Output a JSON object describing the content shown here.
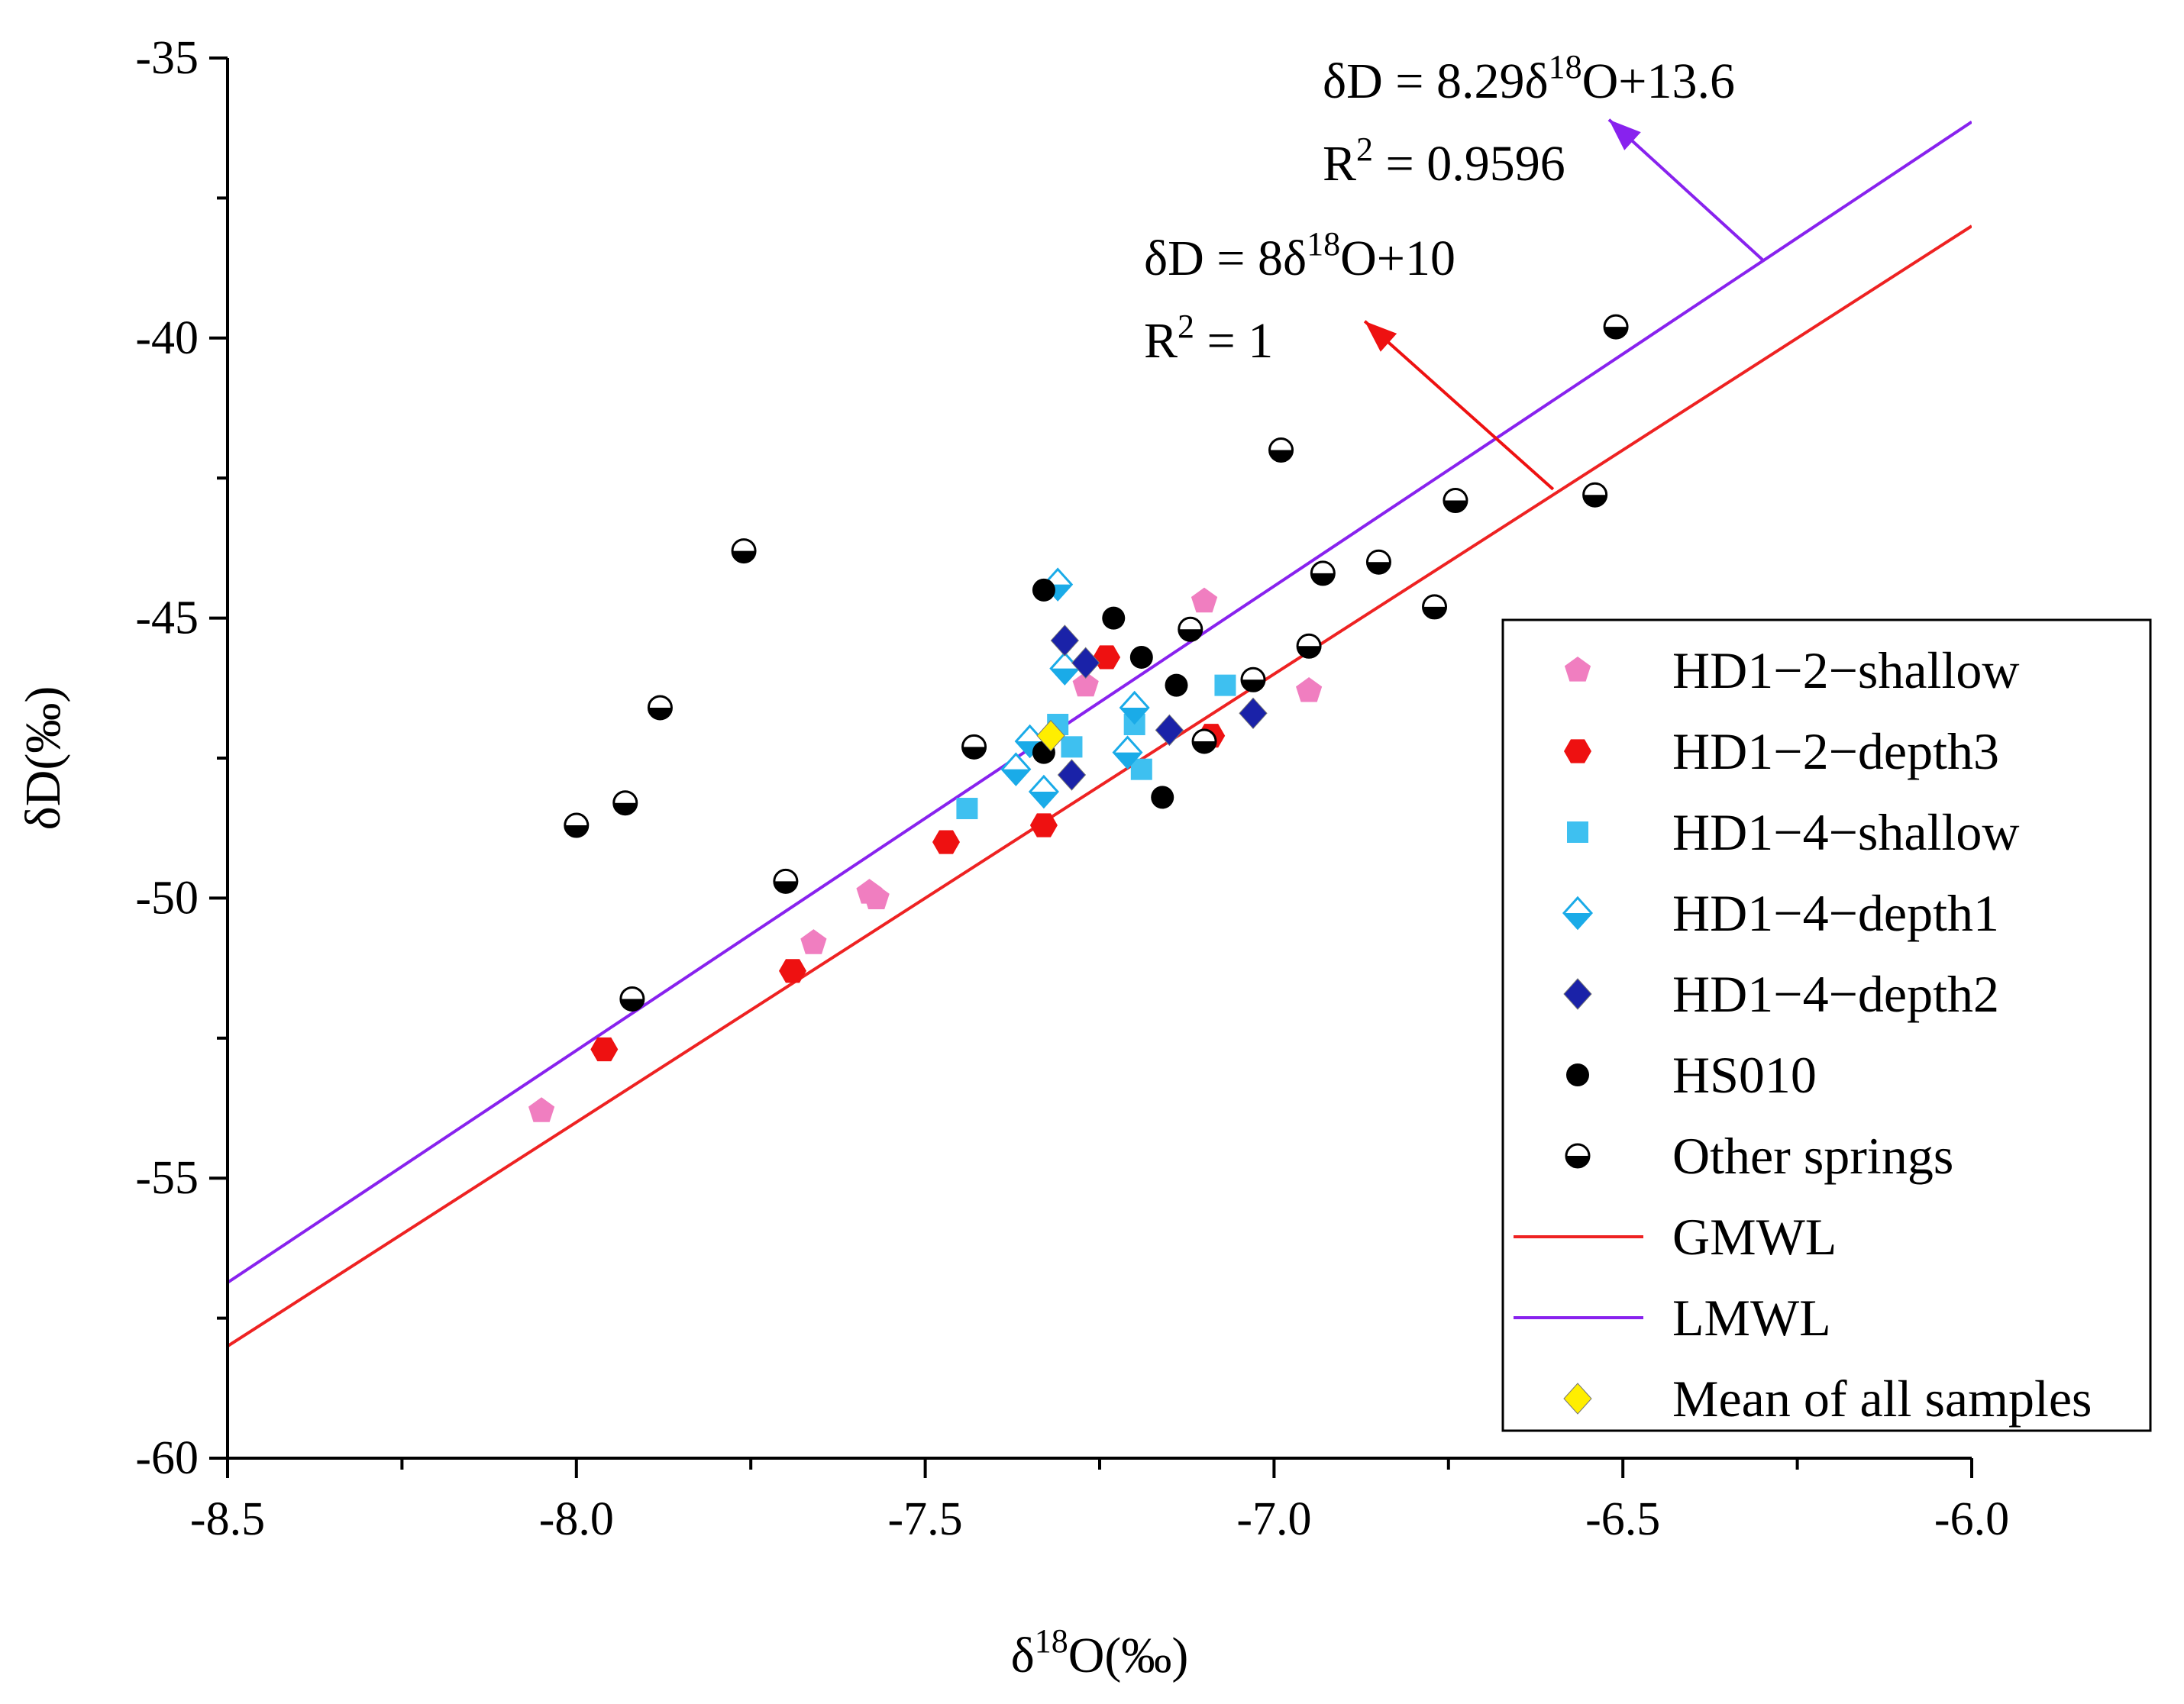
{
  "chart_data": {
    "type": "scatter",
    "xlabel": "δ18O(‰)",
    "ylabel": "δD(‰)",
    "xlim": [
      -8.5,
      -6.0
    ],
    "ylim": [
      -60,
      -35
    ],
    "x_ticks": [
      -8.5,
      -8.0,
      -7.5,
      -7.0,
      -6.5,
      -6.0
    ],
    "x_tick_labels": [
      "-8.5",
      "-8.0",
      "-7.5",
      "-7.0",
      "-6.5",
      "-6.0"
    ],
    "y_ticks": [
      -60,
      -55,
      -50,
      -45,
      -40,
      -35
    ],
    "y_tick_labels": [
      "-60",
      "-55",
      "-50",
      "-45",
      "-40",
      "-35"
    ],
    "legend_position": "right",
    "series": [
      {
        "name": "HD1−2−shallow",
        "marker": "pentagon",
        "color": "#f07ec0",
        "points": [
          [
            -8.05,
            -53.8
          ],
          [
            -7.66,
            -50.8
          ],
          [
            -7.58,
            -49.9
          ],
          [
            -7.57,
            -50.0
          ],
          [
            -7.27,
            -46.2
          ],
          [
            -7.1,
            -44.7
          ],
          [
            -6.95,
            -46.3
          ]
        ]
      },
      {
        "name": "HD1−2−depth3",
        "marker": "hexagon",
        "color": "#ee1111",
        "points": [
          [
            -7.96,
            -52.7
          ],
          [
            -7.69,
            -51.3
          ],
          [
            -7.47,
            -49.0
          ],
          [
            -7.33,
            -48.7
          ],
          [
            -7.24,
            -45.7
          ],
          [
            -7.09,
            -47.1
          ]
        ]
      },
      {
        "name": "HD1−4−shallow",
        "marker": "square",
        "color": "#3ec0f0",
        "points": [
          [
            -7.44,
            -48.4
          ],
          [
            -7.31,
            -46.9
          ],
          [
            -7.29,
            -47.3
          ],
          [
            -7.2,
            -46.9
          ],
          [
            -7.19,
            -47.7
          ],
          [
            -7.07,
            -46.2
          ]
        ]
      },
      {
        "name": "HD1−4−depth1",
        "marker": "diamond-half-bottom",
        "color": "#1aabe8",
        "points": [
          [
            -7.37,
            -47.7
          ],
          [
            -7.35,
            -47.2
          ],
          [
            -7.33,
            -48.1
          ],
          [
            -7.31,
            -44.4
          ],
          [
            -7.3,
            -45.9
          ],
          [
            -7.21,
            -47.4
          ],
          [
            -7.2,
            -46.6
          ]
        ]
      },
      {
        "name": "HD1−4−depth2",
        "marker": "diamond",
        "color": "#1a22a8",
        "points": [
          [
            -7.3,
            -45.4
          ],
          [
            -7.29,
            -47.8
          ],
          [
            -7.27,
            -45.8
          ],
          [
            -7.15,
            -47.0
          ],
          [
            -7.03,
            -46.7
          ]
        ]
      },
      {
        "name": "HS010",
        "marker": "circle",
        "color": "#000000",
        "points": [
          [
            -7.33,
            -44.5
          ],
          [
            -7.33,
            -47.4
          ],
          [
            -7.23,
            -45.0
          ],
          [
            -7.19,
            -45.7
          ],
          [
            -7.16,
            -48.2
          ],
          [
            -7.14,
            -46.2
          ]
        ]
      },
      {
        "name": "Other springs",
        "marker": "circle-half-bottom",
        "color": "#000000",
        "points": [
          [
            -8.0,
            -48.7
          ],
          [
            -7.93,
            -48.3
          ],
          [
            -7.92,
            -51.8
          ],
          [
            -7.88,
            -46.6
          ],
          [
            -7.76,
            -43.8
          ],
          [
            -7.7,
            -49.7
          ],
          [
            -7.43,
            -47.3
          ],
          [
            -7.12,
            -45.2
          ],
          [
            -7.1,
            -47.2
          ],
          [
            -7.03,
            -46.1
          ],
          [
            -6.99,
            -42.0
          ],
          [
            -6.95,
            -45.5
          ],
          [
            -6.93,
            -44.2
          ],
          [
            -6.85,
            -44.0
          ],
          [
            -6.77,
            -44.8
          ],
          [
            -6.74,
            -42.9
          ],
          [
            -6.54,
            -42.8
          ],
          [
            -6.51,
            -39.8
          ]
        ]
      },
      {
        "name": "Mean of all samples",
        "marker": "diamond",
        "color": "#ffee00",
        "points": [
          [
            -7.32,
            -47.1
          ]
        ]
      }
    ],
    "lines": [
      {
        "name": "GMWL",
        "color": "#ee2222",
        "slope": 8,
        "intercept": 10
      },
      {
        "name": "LMWL",
        "color": "#8822ee",
        "slope": 8.29,
        "intercept": 13.6
      }
    ],
    "annotations": [
      {
        "id": "lmwl",
        "line1_prefix": "δD = 8.29δ",
        "line1_sup": "18",
        "line1_suffix": "O+13.6",
        "line2_prefix": "R",
        "line2_sup": "2",
        "line2_suffix": " = 0.9596",
        "color": "#8822ee",
        "arrow_from": [
          -6.3,
          -38.6
        ],
        "arrow_to": [
          -6.52,
          -36.1
        ]
      },
      {
        "id": "gmwl",
        "line1_prefix": "δD = 8δ",
        "line1_sup": "18",
        "line1_suffix": "O+10",
        "line2_prefix": "R",
        "line2_sup": "2",
        "line2_suffix": " = 1",
        "color": "#ee1111",
        "arrow_from": [
          -6.6,
          -42.7
        ],
        "arrow_to": [
          -6.87,
          -39.7
        ]
      }
    ]
  }
}
